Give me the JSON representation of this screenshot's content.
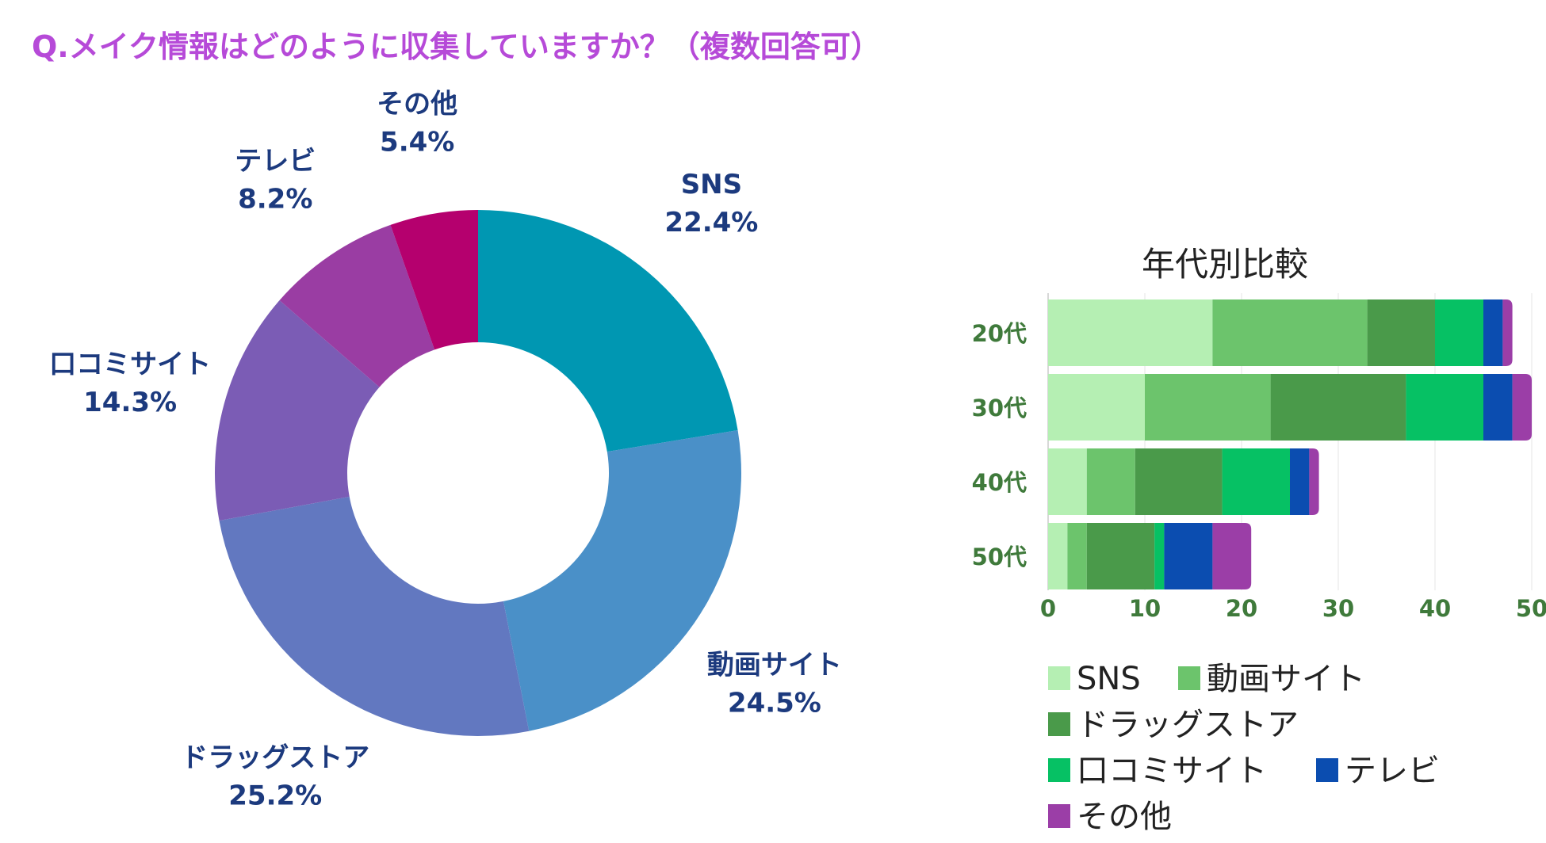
{
  "title": "Q.メイク情報はどのように収集していますか？（複数回答可）",
  "chart_data": [
    {
      "type": "pie",
      "variant": "donut",
      "categories": [
        "SNS",
        "動画サイト",
        "ドラッグストア",
        "口コミサイト",
        "テレビ",
        "その他"
      ],
      "values": [
        22.4,
        24.5,
        25.2,
        14.3,
        8.2,
        5.4
      ],
      "value_labels": [
        "22.4%",
        "24.5%",
        "25.2%",
        "14.3%",
        "8.2%",
        "5.4%"
      ],
      "colors": [
        "#0097b2",
        "#4a90c8",
        "#6278c0",
        "#7b5cb5",
        "#9a3da3",
        "#b5006e"
      ]
    },
    {
      "type": "bar",
      "orientation": "horizontal",
      "stacked": true,
      "title": "年代別比較",
      "categories": [
        "20代",
        "30代",
        "40代",
        "50代"
      ],
      "xlim": [
        0,
        50
      ],
      "xticks": [
        0,
        10,
        20,
        30,
        40,
        50
      ],
      "series": [
        {
          "name": "SNS",
          "color": "#b5efb3",
          "values": [
            17,
            10,
            4,
            2
          ]
        },
        {
          "name": "動画サイト",
          "color": "#6cc46c",
          "values": [
            16,
            13,
            5,
            2
          ]
        },
        {
          "name": "ドラッグストア",
          "color": "#4a9a4a",
          "values": [
            7,
            14,
            9,
            7
          ]
        },
        {
          "name": "口コミサイト",
          "color": "#06c164",
          "values": [
            5,
            8,
            7,
            1
          ]
        },
        {
          "name": "テレビ",
          "color": "#0b4db0",
          "values": [
            2,
            3,
            2,
            5
          ]
        },
        {
          "name": "その他",
          "color": "#9b3ea7",
          "values": [
            1,
            2,
            1,
            4
          ]
        }
      ]
    }
  ]
}
